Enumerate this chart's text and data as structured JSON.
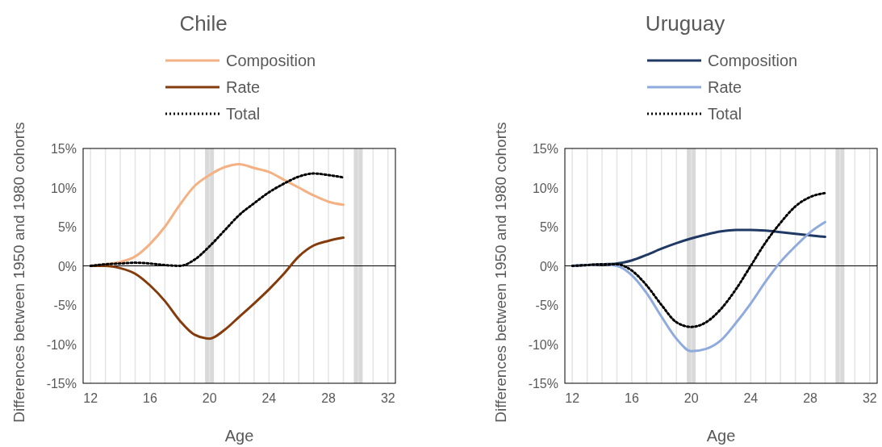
{
  "chart_data": [
    {
      "type": "line",
      "title": "Chile",
      "xlabel": "Age",
      "ylabel": "Differences between 1950 and 1980 cohorts",
      "x": [
        12,
        13,
        14,
        15,
        16,
        17,
        18,
        19,
        20,
        21,
        22,
        23,
        24,
        25,
        26,
        27,
        28,
        29
      ],
      "series": [
        {
          "name": "Composition",
          "color": "#f4b183",
          "values": [
            0,
            0.2,
            0.5,
            1.2,
            2.8,
            5,
            7.8,
            10.2,
            11.6,
            12.6,
            13,
            12.5,
            12,
            11,
            10,
            9,
            8.2,
            7.8
          ]
        },
        {
          "name": "Rate",
          "color": "#843c0c",
          "values": [
            0,
            0,
            -0.3,
            -1,
            -2.5,
            -4.5,
            -7,
            -8.8,
            -9.3,
            -8.2,
            -6.5,
            -4.8,
            -3,
            -1,
            1.2,
            2.6,
            3.2,
            3.6
          ]
        },
        {
          "name": "Total",
          "color": "#000000",
          "line_style": "dotted",
          "values": [
            0,
            0.2,
            0.3,
            0.4,
            0.3,
            0.1,
            0,
            0.8,
            2.5,
            4.5,
            6.5,
            8,
            9.4,
            10.5,
            11.4,
            11.8,
            11.6,
            11.3
          ]
        }
      ],
      "xlim": [
        11.5,
        32.5
      ],
      "xticks": [
        12,
        {
          "value": 13,
          "label": null
        },
        {
          "value": 14,
          "label": null
        },
        {
          "value": 15,
          "label": null
        },
        16,
        {
          "value": 17,
          "label": null
        },
        {
          "value": 18,
          "label": null
        },
        {
          "value": 19,
          "label": null
        },
        20,
        {
          "value": 21,
          "label": null
        },
        {
          "value": 22,
          "label": null
        },
        {
          "value": 23,
          "label": null
        },
        24,
        {
          "value": 25,
          "label": null
        },
        {
          "value": 26,
          "label": null
        },
        {
          "value": 27,
          "label": null
        },
        28,
        {
          "value": 29,
          "label": null
        },
        {
          "value": 30,
          "label": null
        },
        {
          "value": 31,
          "label": null
        },
        32
      ],
      "ylim": [
        -15,
        15
      ],
      "yticks": [
        {
          "value": -15,
          "label": "-15%"
        },
        {
          "value": -10,
          "label": "-10%"
        },
        {
          "value": -5,
          "label": "-5%"
        },
        {
          "value": 0,
          "label": "0%"
        },
        {
          "value": 5,
          "label": "5%"
        },
        {
          "value": 10,
          "label": "10%"
        },
        {
          "value": 15,
          "label": "15%"
        }
      ],
      "grid": "x",
      "legend": "top",
      "line_style": "solid",
      "ref_lines": [
        {
          "axis": "y",
          "value": 0,
          "color": "#000000"
        }
      ],
      "bands": [
        {
          "axis": "x",
          "from": 19.7,
          "to": 20.3,
          "color": "#d9d9d9"
        },
        {
          "axis": "x",
          "from": 29.7,
          "to": 30.3,
          "color": "#d9d9d9"
        }
      ]
    },
    {
      "type": "line",
      "title": "Uruguay",
      "xlabel": "Age",
      "ylabel": "Differences between 1950 and 1980 cohorts",
      "x": [
        12,
        13,
        14,
        15,
        16,
        17,
        18,
        19,
        20,
        21,
        22,
        23,
        24,
        25,
        26,
        27,
        28,
        29
      ],
      "series": [
        {
          "name": "Composition",
          "color": "#203864",
          "values": [
            0,
            0.1,
            0.2,
            0.3,
            0.7,
            1.4,
            2.2,
            2.9,
            3.5,
            4,
            4.4,
            4.6,
            4.6,
            4.5,
            4.3,
            4.1,
            3.9,
            3.7
          ]
        },
        {
          "name": "Rate",
          "color": "#8faadc",
          "values": [
            0,
            0.1,
            0.2,
            0,
            -1.2,
            -3.5,
            -6.5,
            -9.3,
            -10.9,
            -10.6,
            -9.5,
            -7.3,
            -4.8,
            -2,
            0.5,
            2.5,
            4.3,
            5.6
          ]
        },
        {
          "name": "Total",
          "color": "#000000",
          "line_style": "dotted",
          "values": [
            0,
            0.1,
            0.2,
            0.2,
            -0.6,
            -2.5,
            -5,
            -7.2,
            -7.8,
            -7.2,
            -5.5,
            -3,
            0,
            3,
            5.5,
            7.6,
            8.8,
            9.3
          ]
        }
      ],
      "xlim": [
        11.5,
        32.5
      ],
      "xticks": [
        12,
        {
          "value": 13,
          "label": null
        },
        {
          "value": 14,
          "label": null
        },
        {
          "value": 15,
          "label": null
        },
        16,
        {
          "value": 17,
          "label": null
        },
        {
          "value": 18,
          "label": null
        },
        {
          "value": 19,
          "label": null
        },
        20,
        {
          "value": 21,
          "label": null
        },
        {
          "value": 22,
          "label": null
        },
        {
          "value": 23,
          "label": null
        },
        24,
        {
          "value": 25,
          "label": null
        },
        {
          "value": 26,
          "label": null
        },
        {
          "value": 27,
          "label": null
        },
        28,
        {
          "value": 29,
          "label": null
        },
        {
          "value": 30,
          "label": null
        },
        {
          "value": 31,
          "label": null
        },
        32
      ],
      "ylim": [
        -15,
        15
      ],
      "yticks": [
        {
          "value": -15,
          "label": "-15%"
        },
        {
          "value": -10,
          "label": "-10%"
        },
        {
          "value": -5,
          "label": "-5%"
        },
        {
          "value": 0,
          "label": "0%"
        },
        {
          "value": 5,
          "label": "5%"
        },
        {
          "value": 10,
          "label": "10%"
        },
        {
          "value": 15,
          "label": "15%"
        }
      ],
      "grid": "x",
      "legend": "top",
      "line_style": "solid",
      "ref_lines": [
        {
          "axis": "y",
          "value": 0,
          "color": "#000000"
        }
      ],
      "bands": [
        {
          "axis": "x",
          "from": 19.7,
          "to": 20.3,
          "color": "#d9d9d9"
        },
        {
          "axis": "x",
          "from": 29.7,
          "to": 30.3,
          "color": "#d9d9d9"
        }
      ]
    }
  ]
}
